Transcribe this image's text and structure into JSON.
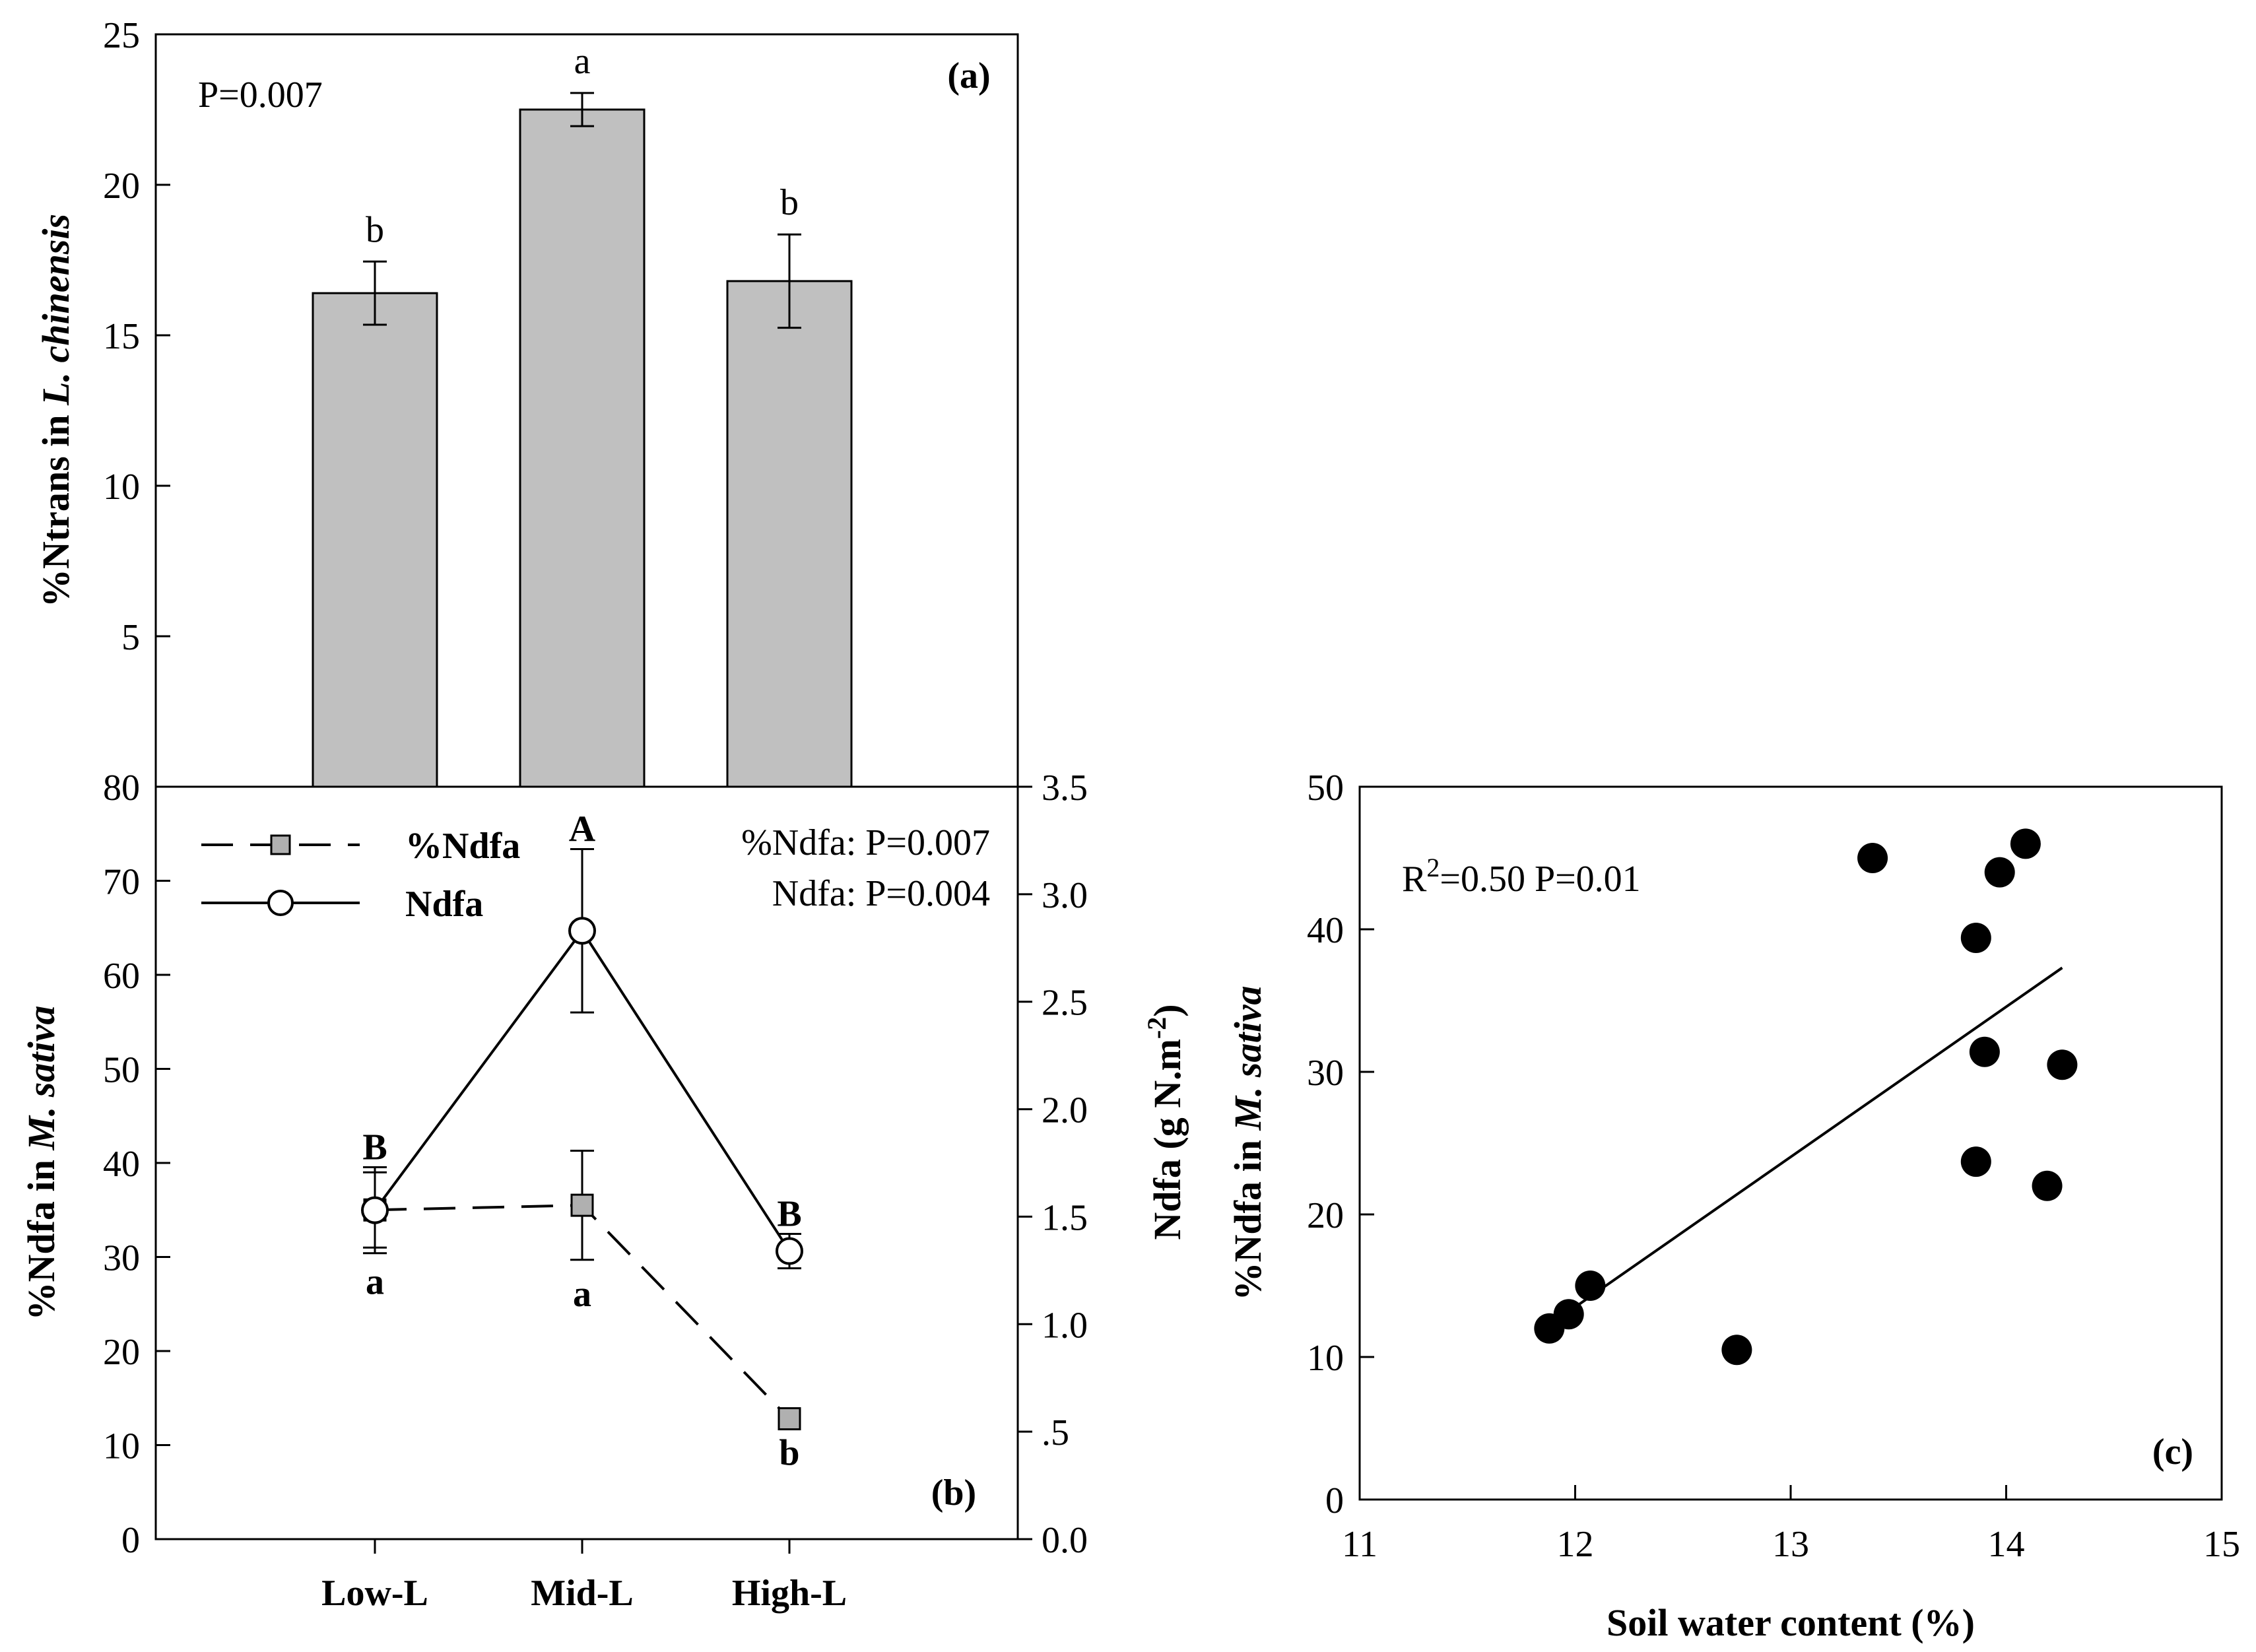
{
  "chart_data": [
    {
      "panel": "a",
      "type": "bar",
      "panel_label": "(a)",
      "ylabel_parts": [
        "%Ntrans in ",
        "L. chinensis"
      ],
      "ylim": [
        0,
        25
      ],
      "yticks": [
        5,
        10,
        15,
        20,
        25
      ],
      "categories": [
        "Low-L",
        "Mid-L",
        "High-L"
      ],
      "values": [
        16.4,
        22.5,
        16.8
      ],
      "errors": [
        1.05,
        0.55,
        1.55
      ],
      "letters": [
        "b",
        "a",
        "b"
      ],
      "annotation": "P=0.007",
      "bar_color": "#c0c0c0"
    },
    {
      "panel": "b",
      "type": "line",
      "panel_label": "(b)",
      "categories": [
        "Low-L",
        "Mid-L",
        "High-L"
      ],
      "ylabel_left_parts": [
        "%Ndfa in ",
        "M. sativa"
      ],
      "ylabel_right": "Ndfa (g N.m",
      "ylabel_right_sup": "-2",
      "ylabel_right_end": ")",
      "ylim_left": [
        0,
        80
      ],
      "yticks_left": [
        0,
        10,
        20,
        30,
        40,
        50,
        60,
        70,
        80
      ],
      "ylim_right": [
        0,
        3.5
      ],
      "yticks_right": [
        0.0,
        0.5,
        1.0,
        1.5,
        2.0,
        2.5,
        3.0,
        3.5
      ],
      "ytick_labels_right": [
        "0.0",
        ".5",
        "1.0",
        "1.5",
        "2.0",
        "2.5",
        "3.0",
        "3.5"
      ],
      "series": [
        {
          "name": "%Ndfa",
          "axis": "left",
          "values": [
            35,
            35.5,
            12.8
          ],
          "errors": [
            4,
            5.8,
            0
          ],
          "letters": [
            "a",
            "a",
            "b"
          ],
          "marker": "square",
          "line": "dashed",
          "color": "#b0b0b0"
        },
        {
          "name": "Ndfa",
          "axis": "right",
          "values": [
            1.53,
            2.83,
            1.34
          ],
          "errors": [
            0.2,
            0.38,
            0.08
          ],
          "letters": [
            "B",
            "A",
            "B"
          ],
          "marker": "circle",
          "line": "solid",
          "color": "#ffffff"
        }
      ],
      "annotations": [
        "%Ndfa: P=0.007",
        "Ndfa: P=0.004"
      ]
    },
    {
      "panel": "c",
      "type": "scatter",
      "panel_label": "(c)",
      "xlabel": "Soil water content (%)",
      "ylabel_parts": [
        "%Ndfa in ",
        "M. sativa"
      ],
      "xlim": [
        11,
        15
      ],
      "ylim": [
        0,
        50
      ],
      "xticks": [
        11,
        12,
        13,
        14,
        15
      ],
      "yticks": [
        0,
        10,
        20,
        30,
        40,
        50
      ],
      "points": [
        {
          "x": 11.88,
          "y": 12.0
        },
        {
          "x": 11.97,
          "y": 13.0
        },
        {
          "x": 12.07,
          "y": 15.0
        },
        {
          "x": 12.75,
          "y": 10.5
        },
        {
          "x": 13.38,
          "y": 45.0
        },
        {
          "x": 13.86,
          "y": 23.7
        },
        {
          "x": 13.86,
          "y": 39.4
        },
        {
          "x": 13.9,
          "y": 31.4
        },
        {
          "x": 13.97,
          "y": 44.0
        },
        {
          "x": 14.09,
          "y": 46.0
        },
        {
          "x": 14.19,
          "y": 22.0
        },
        {
          "x": 14.26,
          "y": 30.5
        }
      ],
      "fit_line": {
        "x": [
          12.0,
          14.26
        ],
        "y": [
          13.5,
          37.3
        ]
      },
      "annotation_prefix": "R",
      "annotation_sup": "2",
      "annotation_rest": "=0.50 P=0.01"
    }
  ]
}
